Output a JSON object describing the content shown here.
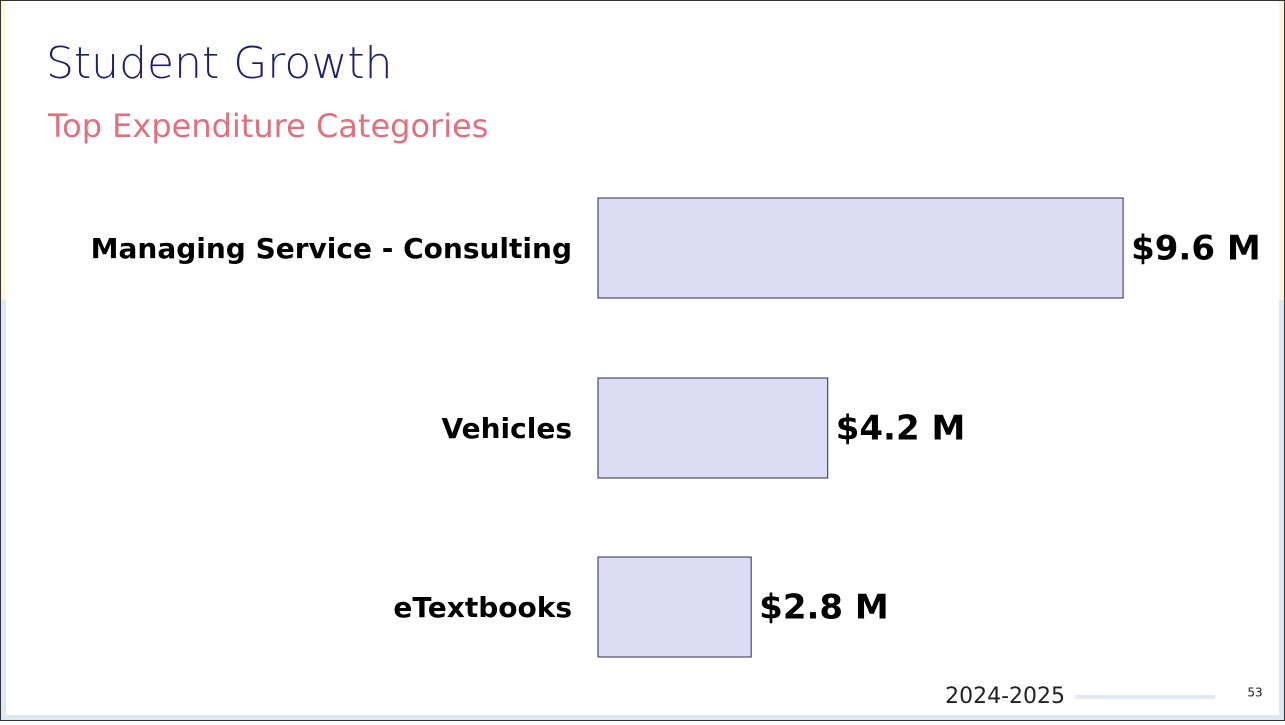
{
  "chart_data": {
    "type": "bar",
    "orientation": "horizontal",
    "title": "Student Growth",
    "subtitle": "Top Expenditure Categories",
    "categories": [
      "Managing Service - Consulting",
      "Vehicles",
      "eTextbooks"
    ],
    "values": [
      9.6,
      4.2,
      2.8
    ],
    "value_labels": [
      "$9.6 M",
      "$4.2 M",
      "$2.8 M"
    ],
    "color": "#dcdcf5"
  },
  "footer": {
    "date": "2024-2025",
    "page": 53
  }
}
